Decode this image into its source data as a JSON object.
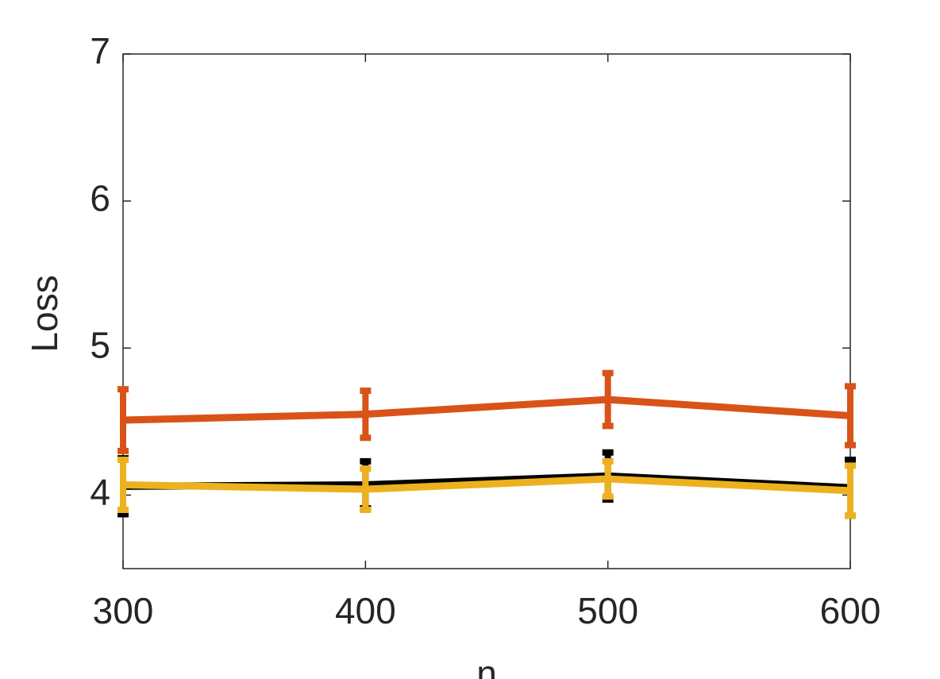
{
  "chart_data": {
    "type": "line",
    "x_label": "n",
    "y_label": "Loss",
    "x": [
      300,
      400,
      500,
      600
    ],
    "xlim": [
      300,
      600
    ],
    "xticks": [
      300,
      400,
      500,
      600
    ],
    "ylim": [
      3.5,
      7
    ],
    "yticks": [
      4,
      5,
      6,
      7
    ],
    "series": [
      {
        "color": "#d95319",
        "values": [
          4.51,
          4.55,
          4.65,
          4.54
        ],
        "errors": [
          0.21,
          0.16,
          0.18,
          0.2
        ]
      },
      {
        "color": "#000000",
        "values": [
          4.06,
          4.07,
          4.13,
          4.05
        ],
        "errors": [
          0.19,
          0.16,
          0.16,
          0.19
        ]
      },
      {
        "color": "#edb120",
        "values": [
          4.07,
          4.04,
          4.11,
          4.03
        ],
        "errors": [
          0.17,
          0.14,
          0.12,
          0.17
        ]
      }
    ]
  }
}
